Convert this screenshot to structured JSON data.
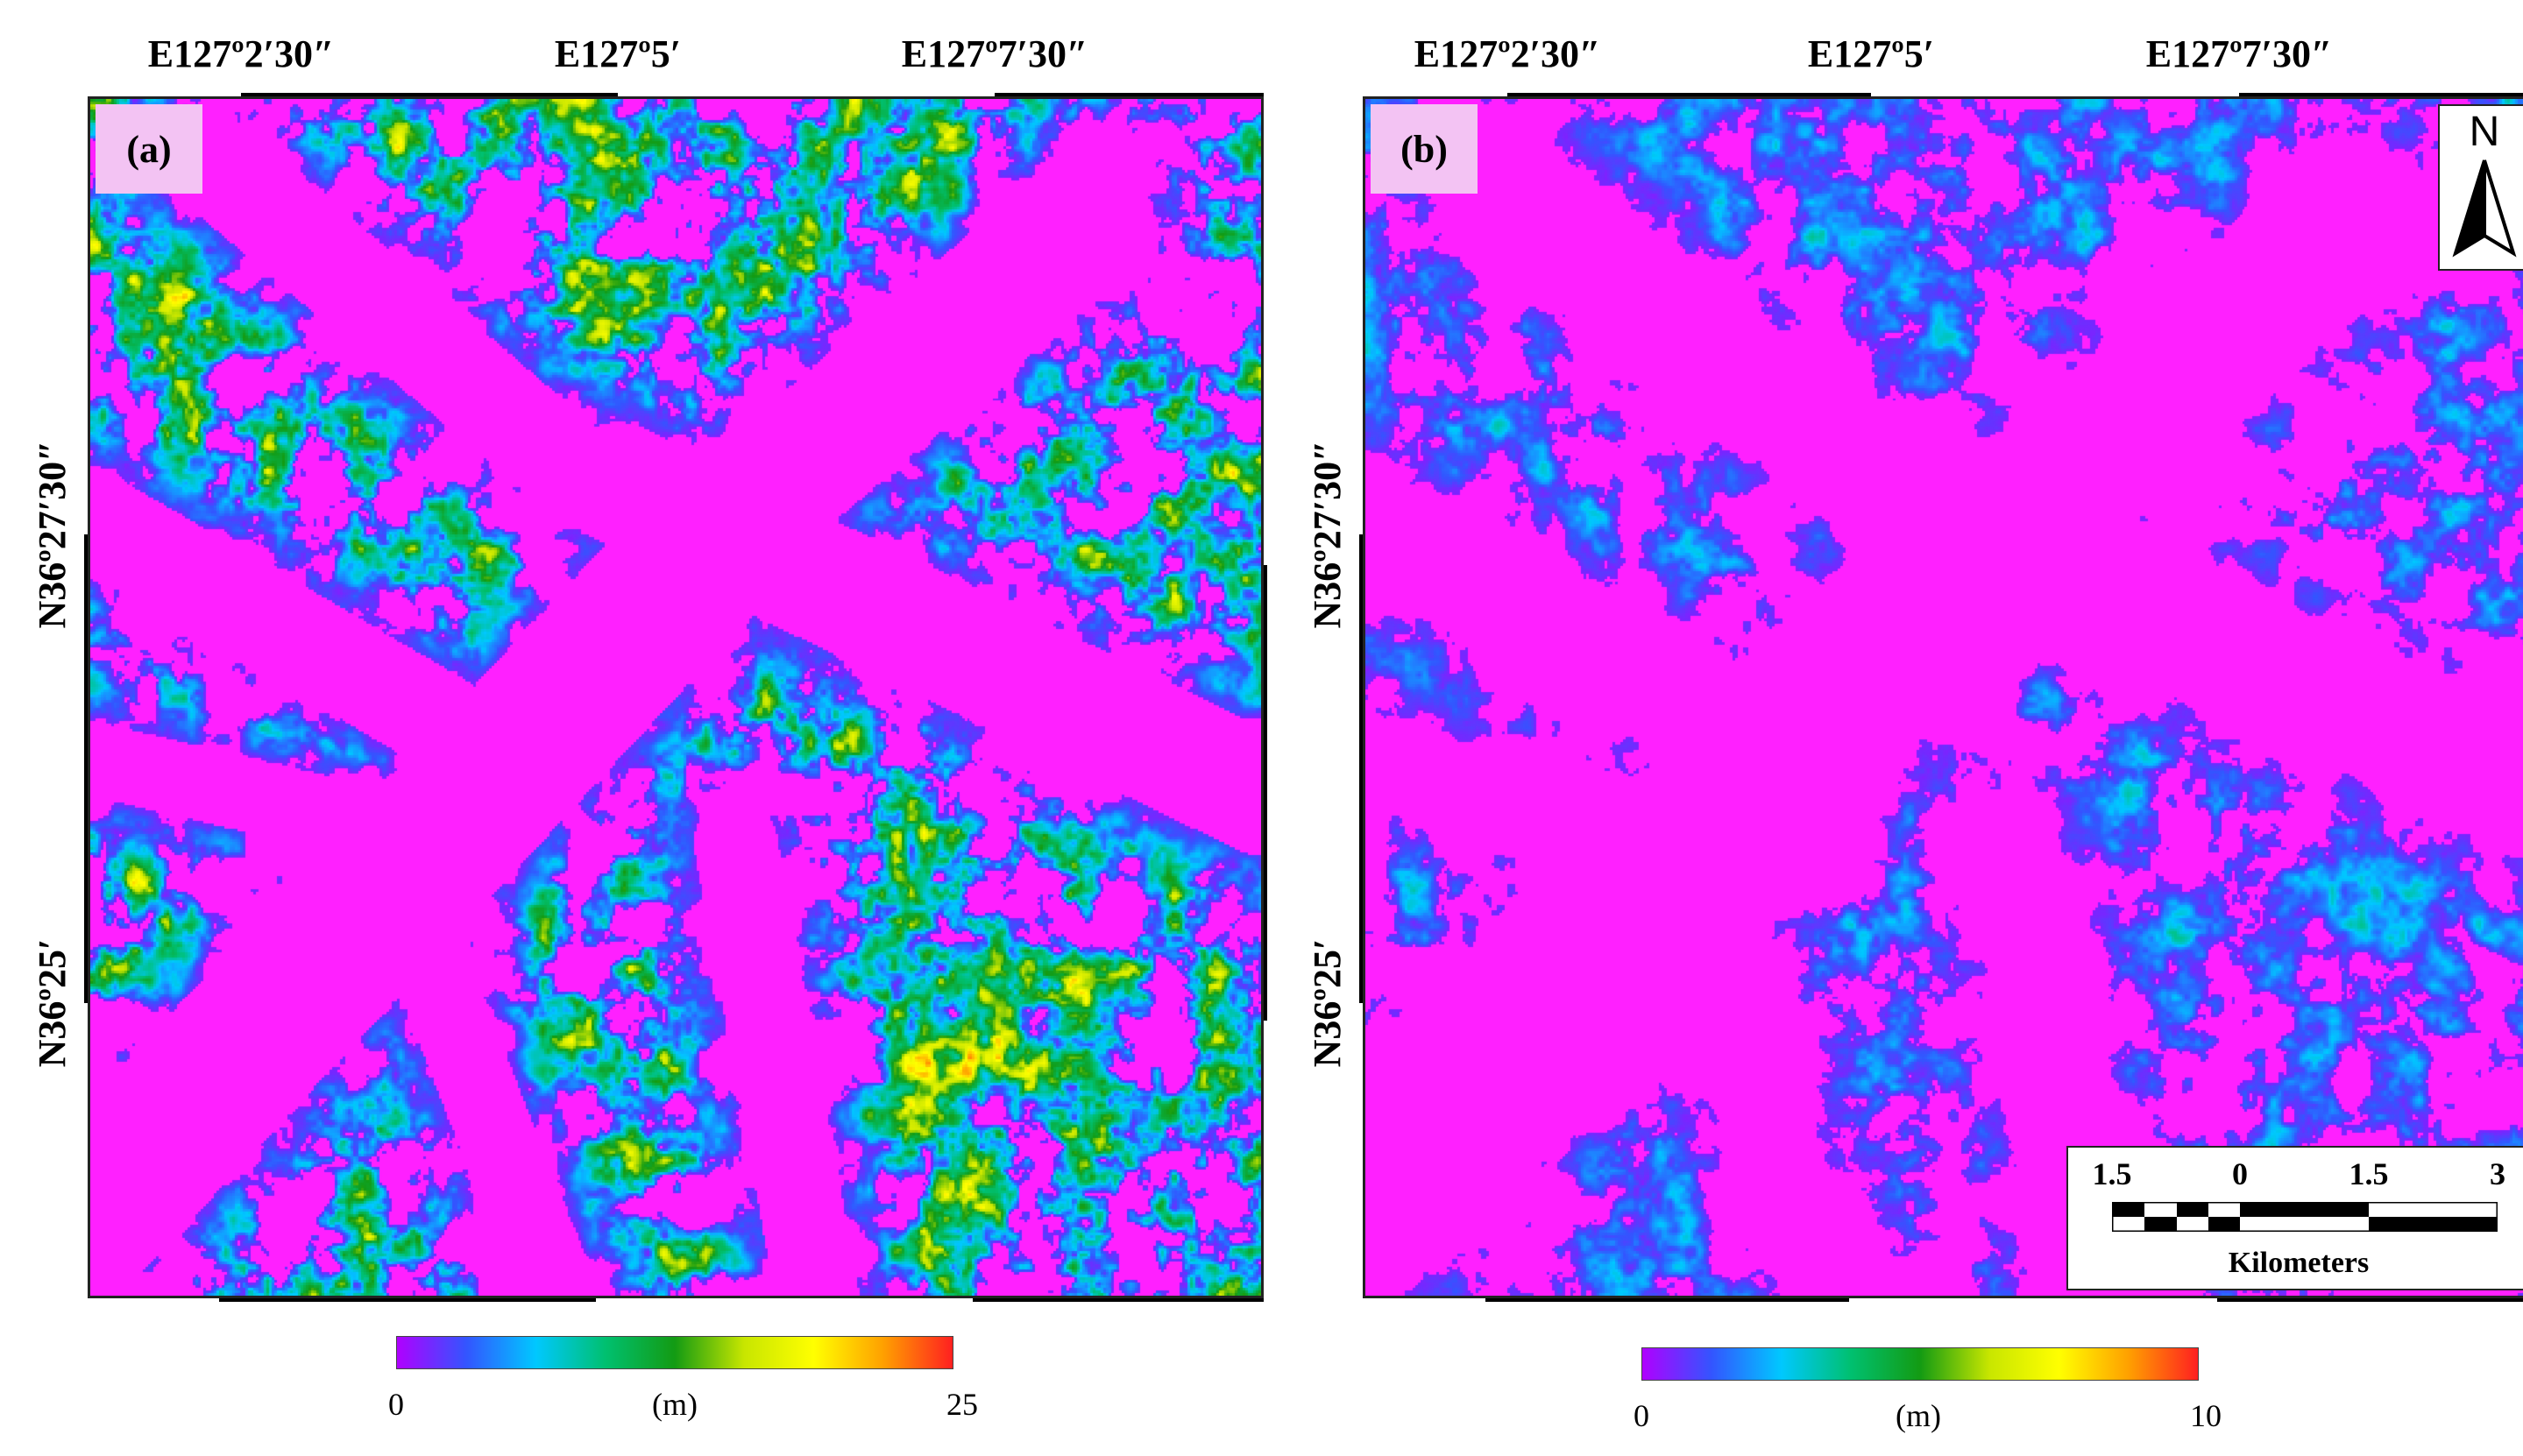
{
  "figure": {
    "longitude_labels": [
      "E127º2′30″",
      "E127º5′",
      "E127º7′30″"
    ],
    "latitude_labels": [
      "N36º27′30″",
      "N36º25′"
    ]
  },
  "panels": [
    {
      "tag": "(a)",
      "legend": {
        "min_label": "0",
        "unit_label": "(m)",
        "max_label": "25"
      },
      "colormap": [
        "#b000ff",
        "#3355ff",
        "#00c8ff",
        "#00c070",
        "#139b13",
        "#c8e600",
        "#ffff00",
        "#ffa000",
        "#ff2020"
      ]
    },
    {
      "tag": "(b)",
      "legend": {
        "min_label": "0",
        "unit_label": "(m)",
        "max_label": "10"
      },
      "colormap": [
        "#b000ff",
        "#3355ff",
        "#00c8ff",
        "#00c070",
        "#139b13",
        "#c8e600",
        "#ffff00",
        "#ffa000",
        "#ff2020"
      ],
      "north_arrow": {
        "letter": "N"
      },
      "scale_bar": {
        "ticks": [
          "1.5",
          "0",
          "1.5",
          "3"
        ],
        "units": "Kilometers"
      }
    }
  ],
  "colors": {
    "background_magenta": "#ff20ff",
    "tag_background": "#f3c3f3"
  }
}
